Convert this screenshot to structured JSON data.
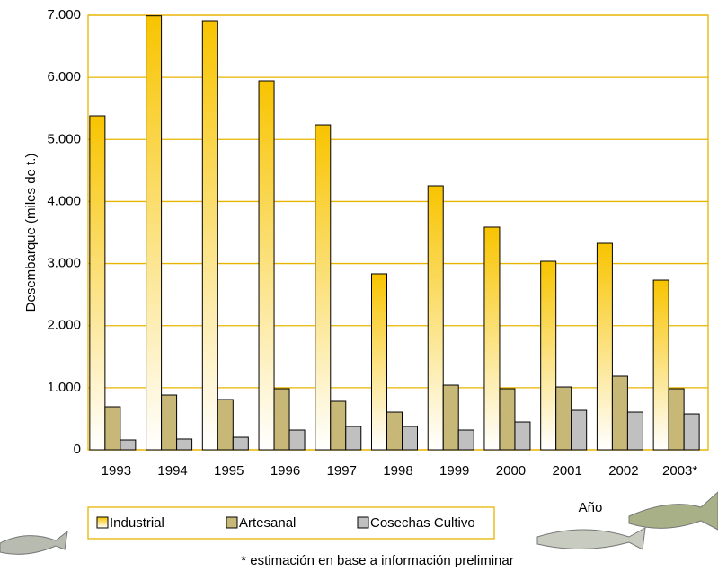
{
  "chart_data": {
    "type": "bar",
    "ylabel": "Desembarque (miles de t.)",
    "xlabel": "Año",
    "footnote": "* estimación en base a información preliminar",
    "categories": [
      "1993",
      "1994",
      "1995",
      "1996",
      "1997",
      "1998",
      "1999",
      "2000",
      "2001",
      "2002",
      "2003*"
    ],
    "series": [
      {
        "name": "Industrial",
        "color": "#f8c400",
        "gradient": true,
        "values": [
          5380,
          6990,
          6913,
          5944,
          5235,
          2835,
          4252,
          3587,
          3037,
          3326,
          2733
        ]
      },
      {
        "name": "Artesanal",
        "color": "#c8b878",
        "values": [
          694,
          882,
          810,
          983,
          781,
          607,
          1041,
          983,
          1012,
          1186,
          983
        ]
      },
      {
        "name": "Cosechas Cultivo",
        "color": "#c0c0c0",
        "values": [
          159,
          174,
          202,
          318,
          376,
          376,
          318,
          448,
          636,
          607,
          578
        ]
      }
    ],
    "ylim": [
      0,
      7000
    ],
    "yticks": [
      0,
      {
        "value": 1000,
        "label": "1.000"
      },
      {
        "value": 2000,
        "label": "2.000"
      },
      {
        "value": 3000,
        "label": "3.000"
      },
      {
        "value": 4000,
        "label": "4.000"
      },
      {
        "value": 5000,
        "label": "5.000"
      },
      {
        "value": 6000,
        "label": "6.000"
      },
      {
        "value": 7000,
        "label": "7.000"
      }
    ],
    "grid": true
  }
}
